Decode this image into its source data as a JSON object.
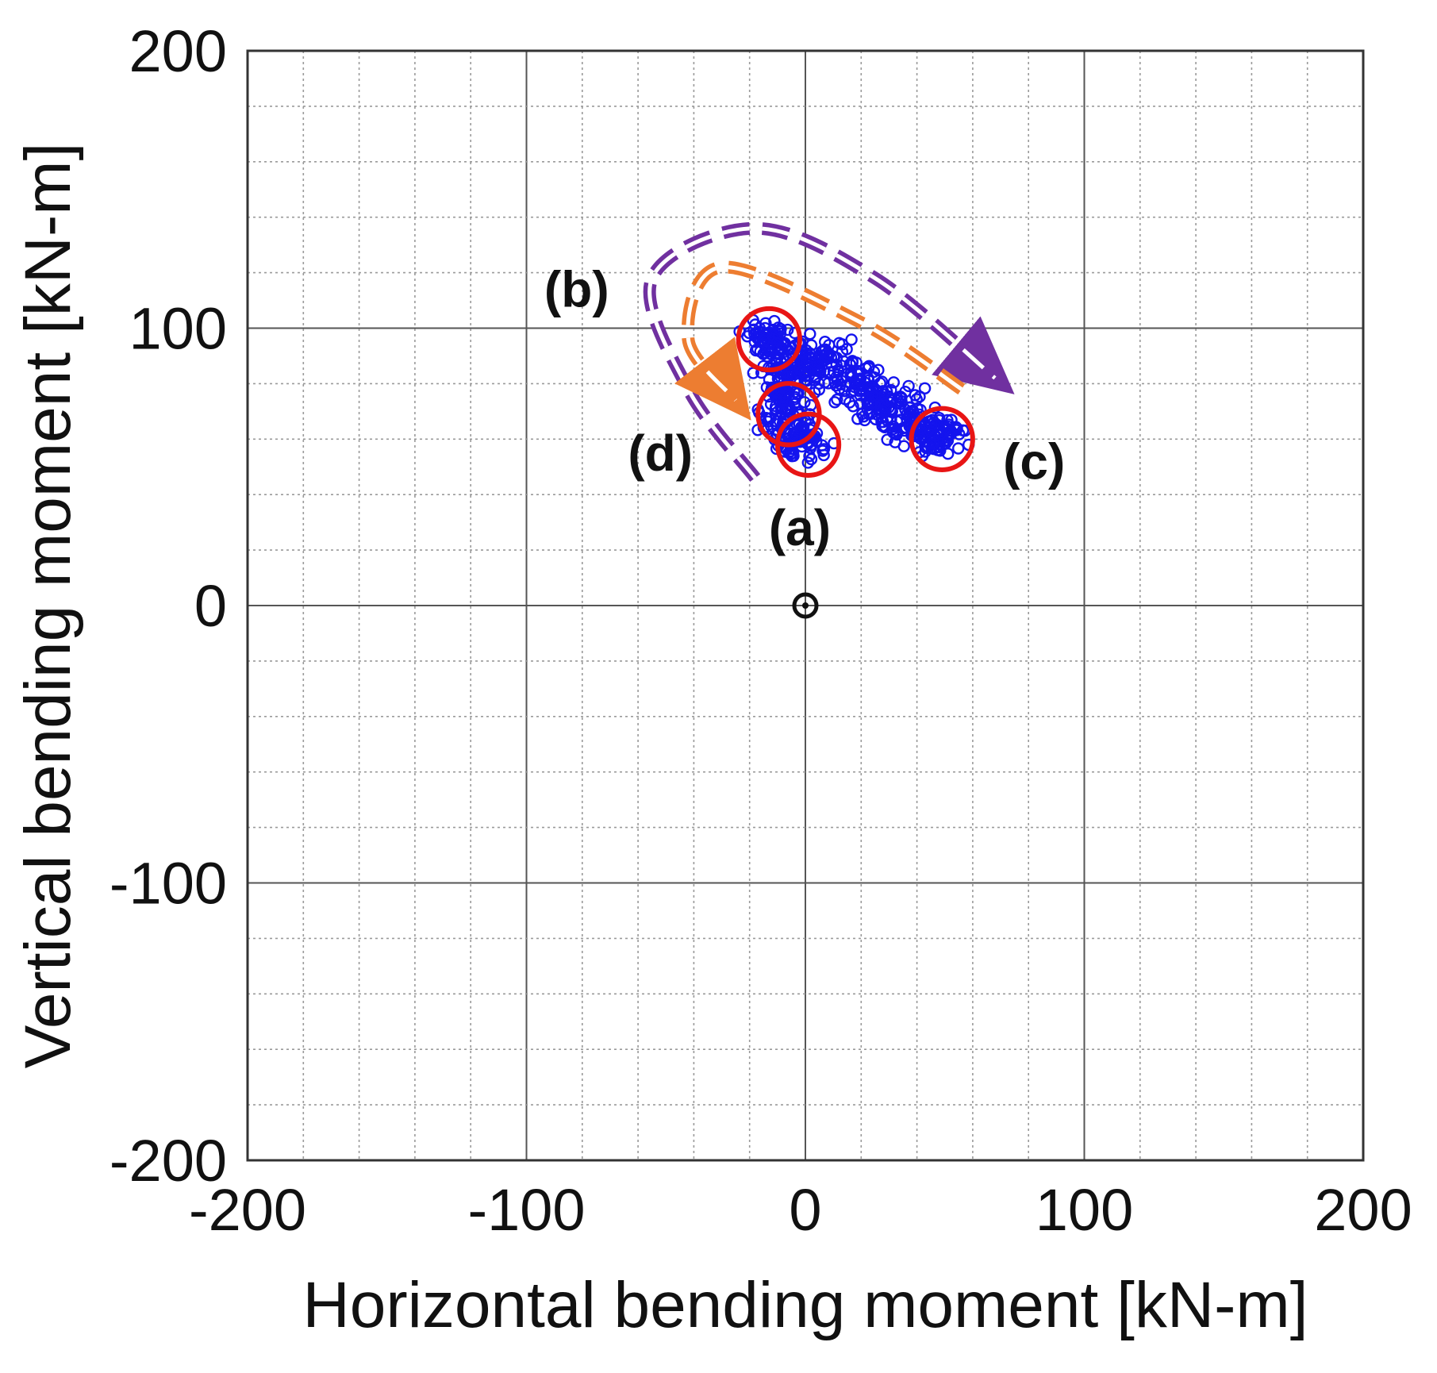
{
  "chart_data": {
    "type": "scatter",
    "title": "",
    "xlabel": "Horizontal bending moment [kN-m]",
    "ylabel": "Vertical bending moment [kN-m]",
    "xlim": [
      -200,
      200
    ],
    "ylim": [
      -200,
      200
    ],
    "major_step": 100,
    "minor_step": 20,
    "grid": true,
    "x_ticks": [
      "-200",
      "-100",
      "0",
      "100",
      "200"
    ],
    "y_ticks": [
      "200",
      "100",
      "0",
      "-100",
      "-200"
    ],
    "marker_color": "#1414ee",
    "highlight_color": "#e81515",
    "origin_marker": {
      "x": 0,
      "y": 0,
      "color": "#111111"
    },
    "clusters": [
      {
        "x": -13,
        "y": 96,
        "sx": 4,
        "sy": 3,
        "n": 70
      },
      {
        "x": -3,
        "y": 88,
        "sx": 6,
        "sy": 4,
        "n": 60
      },
      {
        "x": 10,
        "y": 86,
        "sx": 6,
        "sy": 4,
        "n": 60
      },
      {
        "x": 20,
        "y": 79,
        "sx": 6,
        "sy": 4,
        "n": 60
      },
      {
        "x": 28,
        "y": 72,
        "sx": 6,
        "sy": 4,
        "n": 60
      },
      {
        "x": 37,
        "y": 65,
        "sx": 6,
        "sy": 4,
        "n": 60
      },
      {
        "x": 47,
        "y": 61,
        "sx": 5,
        "sy": 3,
        "n": 70
      },
      {
        "x": -7,
        "y": 70,
        "sx": 4,
        "sy": 5,
        "n": 70
      },
      {
        "x": -1,
        "y": 59,
        "sx": 5,
        "sy": 4,
        "n": 60
      },
      {
        "x": -9,
        "y": 80,
        "sx": 3,
        "sy": 4,
        "n": 40
      }
    ],
    "highlight_circles": [
      {
        "x": -13,
        "y": 96,
        "r": 11
      },
      {
        "x": -6,
        "y": 69,
        "r": 11
      },
      {
        "x": 1,
        "y": 58,
        "r": 11
      },
      {
        "x": 49,
        "y": 60,
        "r": 11
      }
    ],
    "annotations": [
      {
        "label": "(a)",
        "x": -2,
        "y": 28
      },
      {
        "label": "(b)",
        "x": -82,
        "y": 114
      },
      {
        "label": "(c)",
        "x": 82,
        "y": 52
      },
      {
        "label": "(d)",
        "x": -52,
        "y": 55
      }
    ],
    "arrows": [
      {
        "name": "purple-path-arrow",
        "color": "#7030a0",
        "points": [
          [
            -18,
            46
          ],
          [
            -42,
            78
          ],
          [
            -55,
            118
          ],
          [
            -18,
            136
          ],
          [
            25,
            118
          ],
          [
            68,
            82
          ]
        ]
      },
      {
        "name": "orange-path-arrow",
        "color": "#ed7d31",
        "points": [
          [
            56,
            78
          ],
          [
            20,
            102
          ],
          [
            -30,
            122
          ],
          [
            -42,
            96
          ],
          [
            -25,
            74
          ]
        ]
      }
    ]
  }
}
